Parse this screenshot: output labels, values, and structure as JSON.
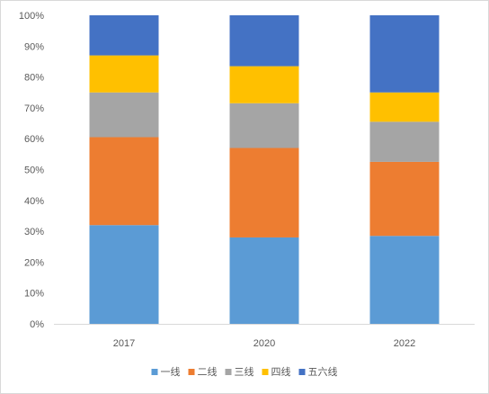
{
  "chart_data": {
    "type": "bar",
    "stacked": true,
    "percent": true,
    "categories": [
      "2017",
      "2020",
      "2022"
    ],
    "y_ticks": [
      "0%",
      "10%",
      "20%",
      "30%",
      "40%",
      "50%",
      "60%",
      "70%",
      "80%",
      "90%",
      "100%"
    ],
    "ylim": [
      0,
      100
    ],
    "grid": false,
    "legend_position": "bottom",
    "series": [
      {
        "name": "一线",
        "color": "#5B9BD5",
        "values": [
          32,
          28,
          28.5
        ]
      },
      {
        "name": "二线",
        "color": "#ED7D31",
        "values": [
          28.5,
          29,
          24
        ]
      },
      {
        "name": "三线",
        "color": "#A5A5A5",
        "values": [
          14.5,
          14.5,
          13
        ]
      },
      {
        "name": "四线",
        "color": "#FFC000",
        "values": [
          12,
          12,
          9.5
        ]
      },
      {
        "name": "五六线",
        "color": "#4472C4",
        "values": [
          13,
          16.5,
          25
        ]
      }
    ]
  }
}
